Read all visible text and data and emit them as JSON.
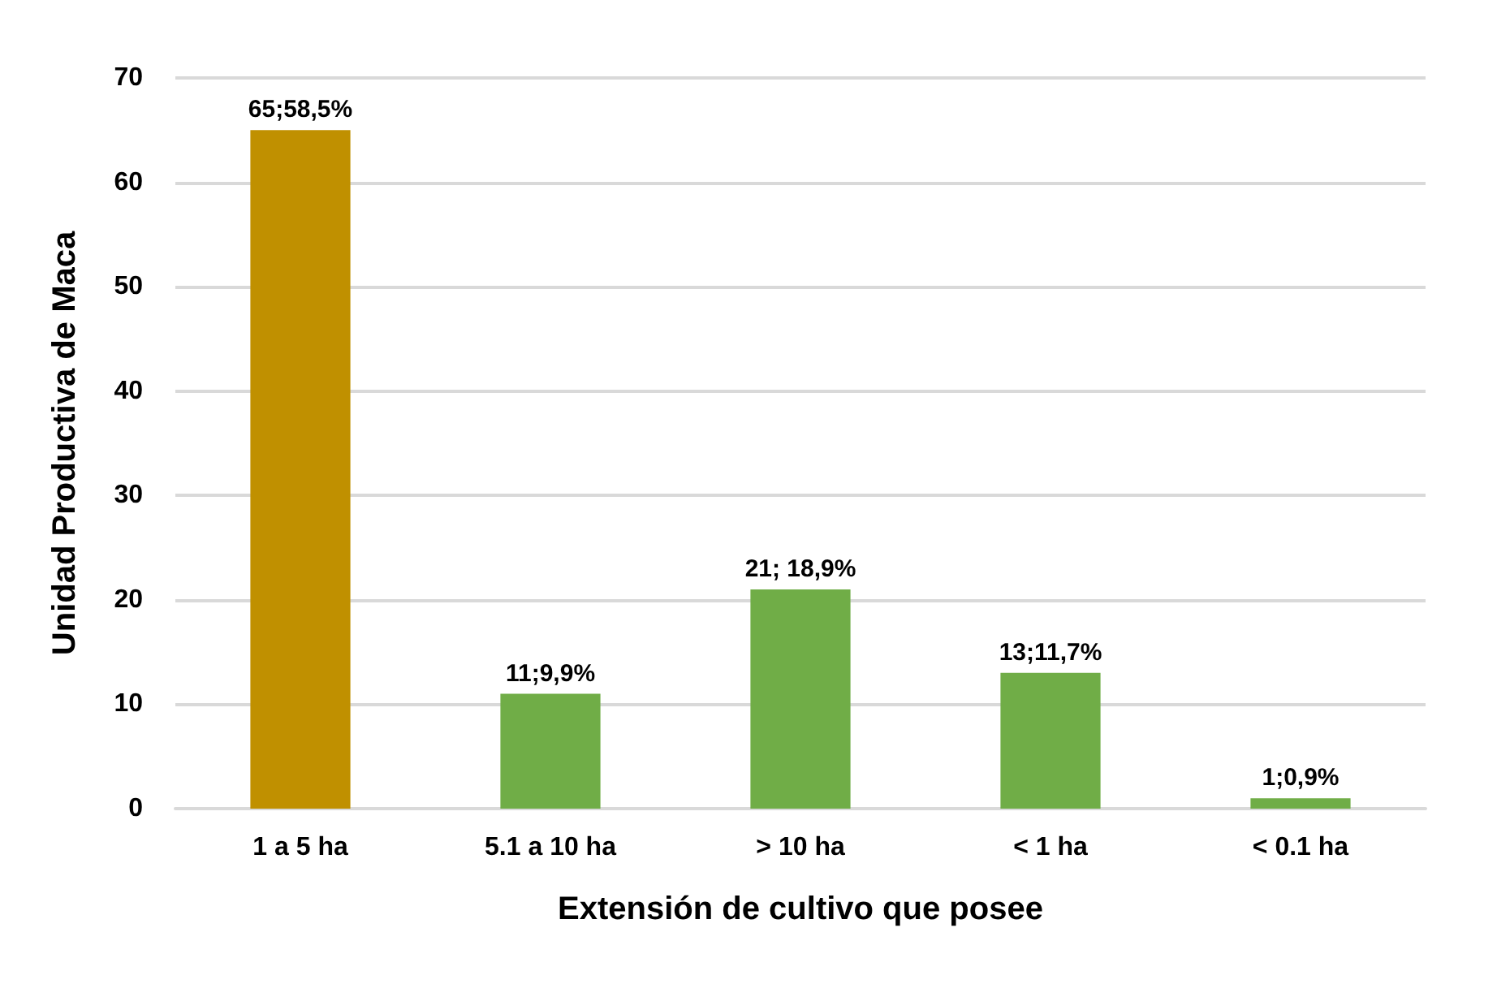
{
  "chart_data": {
    "type": "bar",
    "xlabel": "Extensión de cultivo que posee",
    "ylabel": "Unidad Productiva de Maca",
    "categories": [
      "1 a 5 ha",
      "5.1 a 10 ha",
      "> 10 ha",
      "< 1 ha",
      "< 0.1 ha"
    ],
    "values": [
      65,
      11,
      21,
      13,
      1
    ],
    "colors": [
      "#c09000",
      "#70ad47",
      "#70ad47",
      "#70ad47",
      "#70ad47"
    ],
    "value_labels": [
      "65;58,5%",
      "11;9,9%",
      "21; 18,9%",
      "13;11,7%",
      "1;0,9%"
    ],
    "ylim": [
      0,
      70
    ],
    "yticks": [
      0,
      10,
      20,
      30,
      40,
      50,
      60,
      70
    ],
    "grid": "y"
  }
}
